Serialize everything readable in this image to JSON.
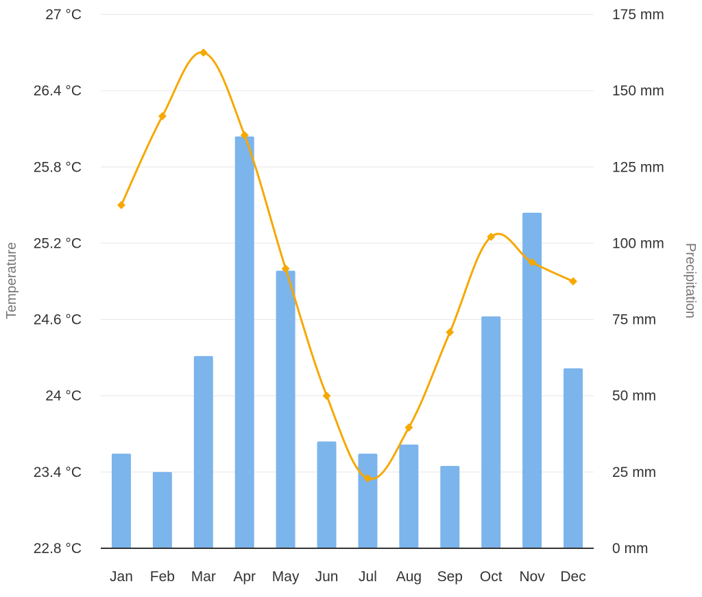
{
  "chart_data": {
    "type": "bar",
    "categories": [
      "Jan",
      "Feb",
      "Mar",
      "Apr",
      "May",
      "Jun",
      "Jul",
      "Aug",
      "Sep",
      "Oct",
      "Nov",
      "Dec"
    ],
    "series": [
      {
        "name": "Precipitation",
        "type": "bar",
        "axis": "right",
        "color": "#7cb4ec",
        "values": [
          31,
          25,
          63,
          135,
          91,
          35,
          31,
          34,
          27,
          76,
          110,
          59
        ]
      },
      {
        "name": "Temperature",
        "type": "line",
        "axis": "left",
        "smooth": true,
        "marker": "diamond",
        "color": "#f6a800",
        "values": [
          25.5,
          26.2,
          26.7,
          26.05,
          25.0,
          24.0,
          23.35,
          23.75,
          24.5,
          25.25,
          25.05,
          24.9
        ]
      }
    ],
    "y_left": {
      "label": "Temperature",
      "min": 22.8,
      "max": 27,
      "ticks": [
        "22.8 °C",
        "23.4 °C",
        "24 °C",
        "24.6 °C",
        "25.2 °C",
        "25.8 °C",
        "26.4 °C",
        "27 °C"
      ]
    },
    "y_right": {
      "label": "Precipitation",
      "min": 0,
      "max": 175,
      "ticks": [
        "0 mm",
        "25 mm",
        "50 mm",
        "75 mm",
        "100 mm",
        "125 mm",
        "150 mm",
        "175 mm"
      ]
    },
    "grid": true,
    "legend": "none"
  }
}
